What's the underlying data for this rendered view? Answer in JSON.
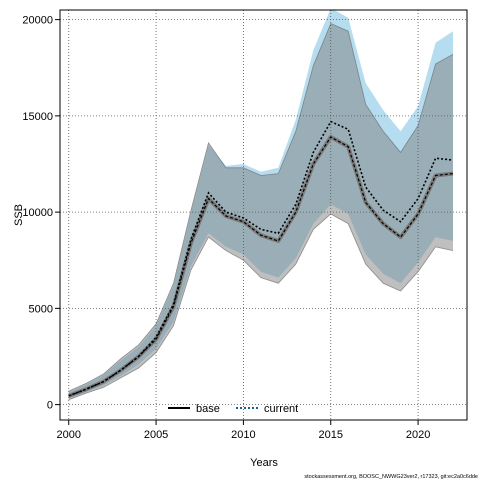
{
  "chart_data": {
    "type": "line",
    "xlabel": "Years",
    "ylabel": "SSB",
    "xlim": [
      1999.5,
      2022.8
    ],
    "ylim": [
      -800,
      20500
    ],
    "xticks": [
      2000,
      2005,
      2010,
      2015,
      2020
    ],
    "yticks": [
      0,
      5000,
      10000,
      15000,
      20000
    ],
    "grid": true,
    "legend_position": "bottom-center",
    "x": [
      2000,
      2001,
      2002,
      2003,
      2004,
      2005,
      2006,
      2007,
      2008,
      2009,
      2010,
      2011,
      2012,
      2013,
      2014,
      2015,
      2016,
      2017,
      2018,
      2019,
      2020,
      2021,
      2022
    ],
    "series": [
      {
        "name": "base",
        "line_style": "solid",
        "color": "#000000",
        "band_color": "#808080",
        "values": [
          450,
          800,
          1200,
          1800,
          2500,
          3400,
          5100,
          8400,
          10700,
          9800,
          9500,
          8800,
          8500,
          10000,
          12500,
          13900,
          13400,
          10500,
          9400,
          8700,
          9900,
          11900,
          12000
        ],
        "lower": [
          250,
          600,
          900,
          1400,
          1900,
          2700,
          4100,
          7000,
          8700,
          8000,
          7500,
          6600,
          6300,
          7300,
          9100,
          9900,
          9400,
          7300,
          6300,
          5900,
          6900,
          8200,
          8000
        ],
        "upper": [
          700,
          1100,
          1600,
          2400,
          3100,
          4200,
          6300,
          10100,
          13600,
          12300,
          12300,
          11900,
          12000,
          14200,
          17600,
          19800,
          19400,
          15600,
          14200,
          13100,
          14500,
          17700,
          18200
        ]
      },
      {
        "name": "current",
        "line_style": "dotted",
        "color": "#1a5e8a",
        "band_color": "#5bb3dc",
        "values": [
          450,
          800,
          1200,
          1800,
          2500,
          3500,
          5200,
          8600,
          11000,
          10000,
          9700,
          9100,
          8900,
          10400,
          13100,
          14700,
          14300,
          11300,
          10100,
          9500,
          10700,
          12800,
          12700
        ],
        "lower": [
          300,
          650,
          1000,
          1500,
          2100,
          2900,
          4300,
          7200,
          8900,
          8200,
          7800,
          6900,
          6600,
          7600,
          9400,
          10400,
          9900,
          7800,
          6800,
          6300,
          7400,
          8700,
          8500
        ],
        "upper": [
          650,
          1050,
          1550,
          2300,
          3000,
          4100,
          6200,
          10000,
          13500,
          12400,
          12500,
          12100,
          12300,
          14800,
          18400,
          20600,
          20100,
          16700,
          15300,
          14200,
          15500,
          18800,
          19400
        ]
      }
    ],
    "caption": "stockassessment.org, BOOSC_NWWG23ver2, r17323, git:ec2a0c6dde"
  }
}
